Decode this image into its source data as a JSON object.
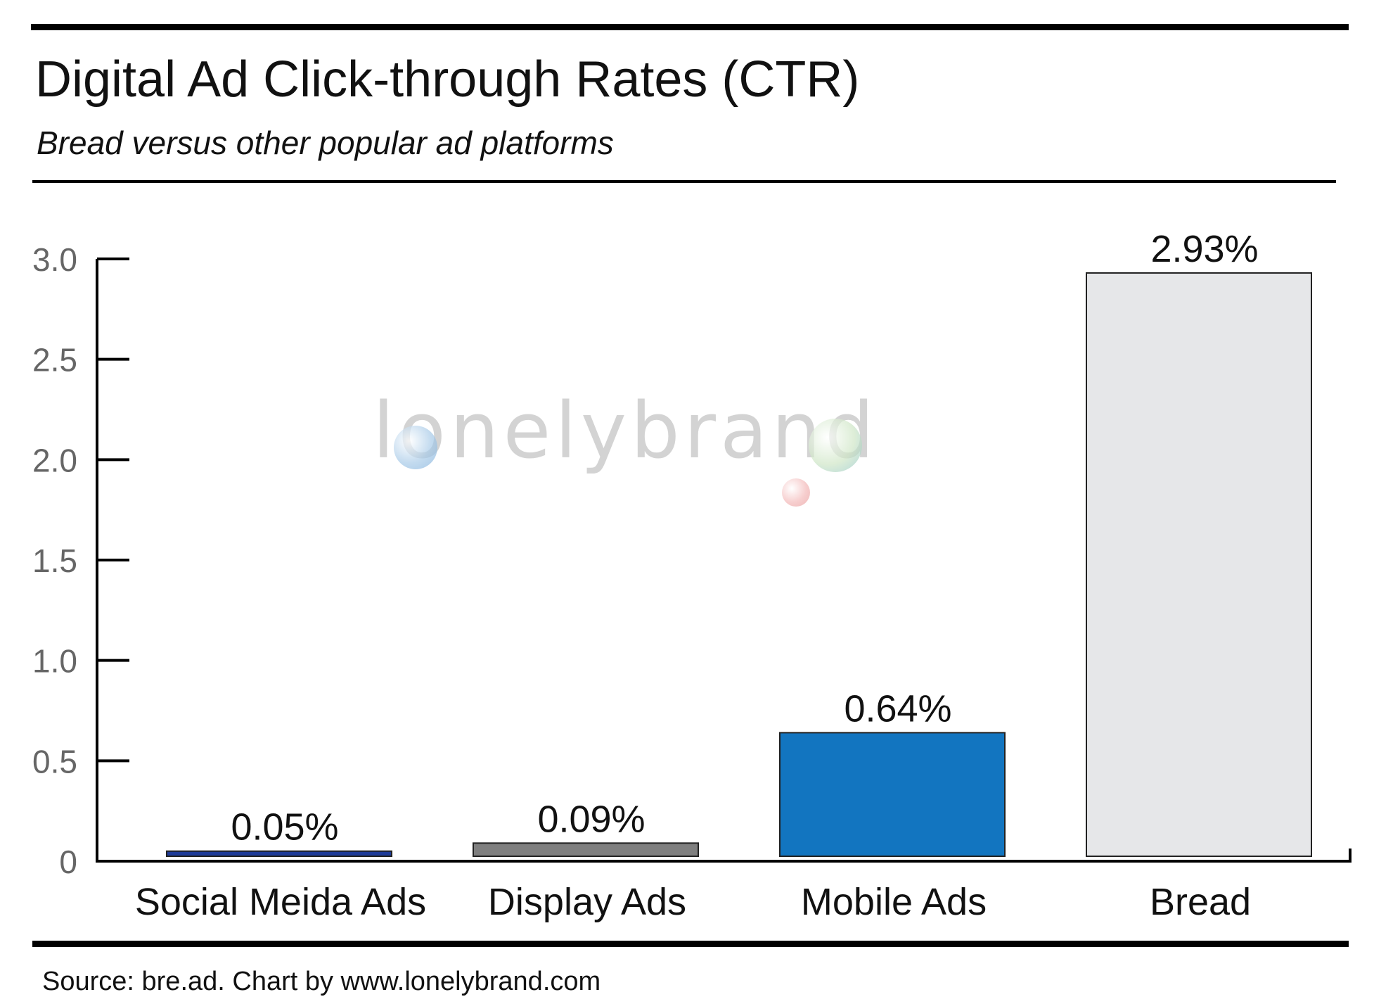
{
  "header": {
    "title": "Digital Ad Click-through Rates (CTR)",
    "subtitle": "Bread versus other popular ad platforms"
  },
  "footer": {
    "source": "Source: bre.ad.  Chart by www.lonelybrand.com"
  },
  "watermark": {
    "text": "lonelybrand"
  },
  "chart_data": {
    "type": "bar",
    "title": "Digital Ad Click-through Rates (CTR)",
    "subtitle": "Bread versus other popular ad platforms",
    "xlabel": "",
    "ylabel": "",
    "ylim": [
      0,
      3.0
    ],
    "yticks": [
      0,
      0.5,
      1.0,
      1.5,
      2.0,
      2.5,
      3.0
    ],
    "ytick_labels": [
      "0",
      "0.5",
      "1.0",
      "1.5",
      "2.0",
      "2.5",
      "3.0"
    ],
    "grid": false,
    "categories": [
      "Social Meida Ads",
      "Display Ads",
      "Mobile Ads",
      "Bread"
    ],
    "values": [
      0.05,
      0.09,
      0.64,
      2.93
    ],
    "data_labels": [
      "0.05%",
      "0.09%",
      "0.64%",
      "2.93%"
    ],
    "colors": [
      "#1f3c99",
      "#7f7f7f",
      "#1275c0",
      "#e6e7e9"
    ]
  }
}
